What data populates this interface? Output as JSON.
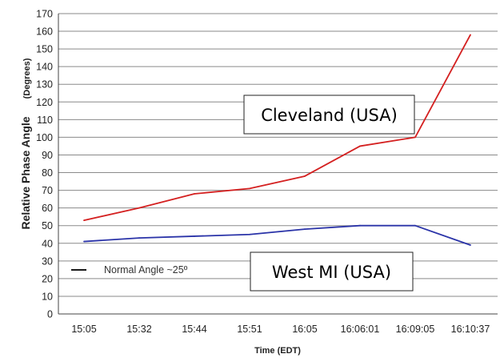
{
  "chart_data": {
    "type": "line",
    "xlabel": "Time (EDT)",
    "ylabel": "Relative Phase Angle",
    "ylabel_unit": "(Degrees)",
    "categories": [
      "15:05",
      "15:32",
      "15:44",
      "15:51",
      "16:05",
      "16:06:01",
      "16:09:05",
      "16:10:37"
    ],
    "ylim": [
      0,
      170
    ],
    "yticks": [
      0,
      10,
      20,
      30,
      40,
      50,
      60,
      70,
      80,
      90,
      100,
      110,
      120,
      130,
      140,
      150,
      160,
      170
    ],
    "grid": true,
    "series": [
      {
        "name": "Cleveland (USA)",
        "color": "#d42020",
        "values": [
          53,
          60,
          68,
          71,
          78,
          95,
          100,
          158
        ]
      },
      {
        "name": "West MI (USA)",
        "color": "#2a33a8",
        "values": [
          41,
          43,
          44,
          45,
          48,
          50,
          50,
          39
        ]
      }
    ],
    "legend": {
      "label": "Normal Angle ~25º",
      "color": "#1a1a1a",
      "placement": "bottom-left"
    }
  }
}
